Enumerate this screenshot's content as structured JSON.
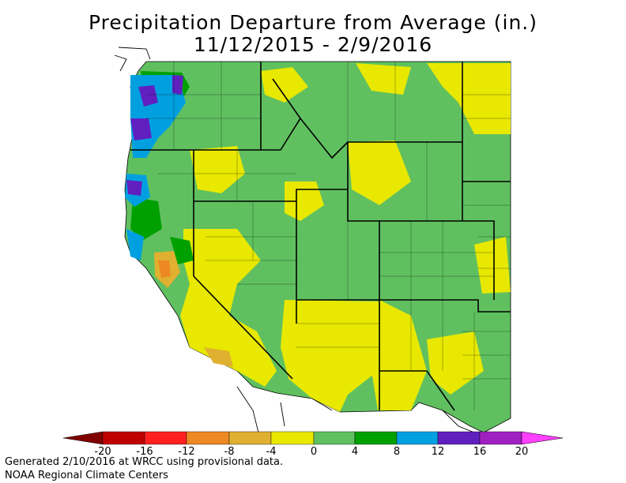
{
  "title": {
    "line1": "Precipitation Departure from Average (in.)",
    "line2": "11/12/2015 - 2/9/2016"
  },
  "legend": {
    "ticks": [
      "-20",
      "-16",
      "-12",
      "-8",
      "-4",
      "0",
      "4",
      "8",
      "12",
      "16",
      "20"
    ],
    "colors": [
      "#a00000",
      "#e00000",
      "#ff2020",
      "#ee8822",
      "#e0b030",
      "#e8e800",
      "#60c060",
      "#00a000",
      "#00a0e0",
      "#6020c0",
      "#a020c0",
      "#ff40ff"
    ]
  },
  "map_colors": {
    "ocean": "#ffffff",
    "near_normal_dry": "#e8e800",
    "near_normal_wet": "#60c060",
    "wet": "#00a000",
    "very_wet": "#00a0e0",
    "extreme_wet": "#6020c0",
    "dry": "#e0b030",
    "very_dry": "#ee8822",
    "boundaries": "#000000"
  },
  "credits": {
    "line1": "Generated 2/10/2016 at WRCC using provisional data.",
    "line2": "NOAA Regional Climate Centers"
  }
}
